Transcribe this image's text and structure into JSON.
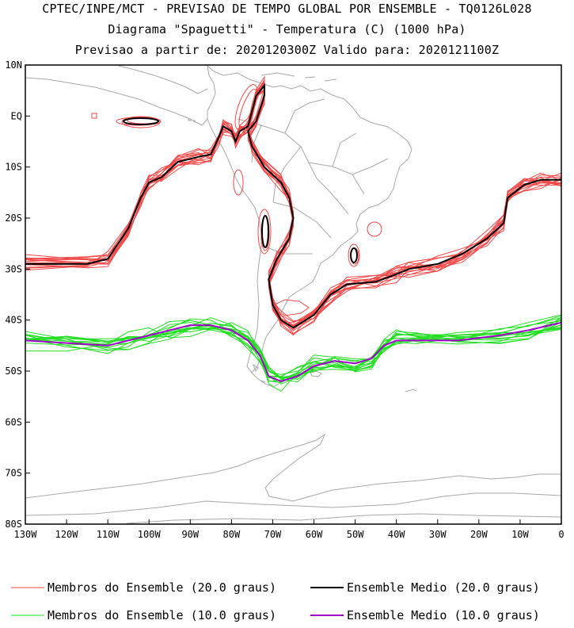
{
  "header": {
    "line1": "CPTEC/INPE/MCT - PREVISAO DE TEMPO GLOBAL POR ENSEMBLE - TQ0126L028",
    "line2": "Diagrama \"Spaguetti\" - Temperatura (C) (1000 hPa)",
    "line3": "Previsao a partir de: 2020120300Z  Valido para: 2020121100Z"
  },
  "map": {
    "lon_range": [
      -130,
      0
    ],
    "lat_range": [
      -80,
      10
    ],
    "lat_ticks": [
      {
        "value": 10,
        "label": "10N"
      },
      {
        "value": 0,
        "label": "EQ"
      },
      {
        "value": -10,
        "label": "10S"
      },
      {
        "value": -20,
        "label": "20S"
      },
      {
        "value": -30,
        "label": "30S"
      },
      {
        "value": -40,
        "label": "40S"
      },
      {
        "value": -50,
        "label": "50S"
      },
      {
        "value": -60,
        "label": "60S"
      },
      {
        "value": -70,
        "label": "70S"
      },
      {
        "value": -80,
        "label": "80S"
      }
    ],
    "lon_ticks": [
      {
        "value": -130,
        "label": "130W"
      },
      {
        "value": -120,
        "label": "120W"
      },
      {
        "value": -110,
        "label": "110W"
      },
      {
        "value": -100,
        "label": "100W"
      },
      {
        "value": -90,
        "label": "90W"
      },
      {
        "value": -80,
        "label": "80W"
      },
      {
        "value": -70,
        "label": "70W"
      },
      {
        "value": -60,
        "label": "60W"
      },
      {
        "value": -50,
        "label": "50W"
      },
      {
        "value": -40,
        "label": "40W"
      },
      {
        "value": -30,
        "label": "30W"
      },
      {
        "value": -20,
        "label": "20W"
      },
      {
        "value": -10,
        "label": "10W"
      },
      {
        "value": 0,
        "label": "0"
      }
    ],
    "colors": {
      "coastline": "#a8a8a8",
      "member_20": "#f04848",
      "mean_20": "#000000",
      "member_10": "#22dd22",
      "mean_10": "#a000c8"
    }
  },
  "legend": {
    "items": [
      {
        "label": "Membros do Ensemble (20.0 graus)",
        "color": "#f04848",
        "weight": 1
      },
      {
        "label": "Ensemble Medio (20.0 graus)",
        "color": "#000000",
        "weight": 2
      },
      {
        "label": "Membros do Ensemble (10.0 graus)",
        "color": "#22dd22",
        "weight": 1
      },
      {
        "label": "Ensemble Medio (10.0 graus)",
        "color": "#a000c8",
        "weight": 2
      }
    ]
  },
  "isotherms": {
    "mean_20": [
      [
        -130,
        -29
      ],
      [
        -115,
        -29
      ],
      [
        -110,
        -28
      ],
      [
        -105,
        -22
      ],
      [
        -102,
        -16
      ],
      [
        -100,
        -13
      ],
      [
        -97,
        -12
      ],
      [
        -93,
        -9
      ],
      [
        -88,
        -8
      ],
      [
        -85,
        -7.5
      ],
      [
        -83,
        -4
      ],
      [
        -82,
        -2
      ],
      [
        -80,
        -3
      ],
      [
        -79,
        -5
      ],
      [
        -78,
        -3
      ],
      [
        -76,
        -2
      ],
      [
        -75,
        1
      ],
      [
        -74,
        4
      ],
      [
        -72,
        6
      ],
      [
        -72,
        4
      ],
      [
        -74,
        -1
      ],
      [
        -76,
        -3
      ],
      [
        -75,
        -6
      ],
      [
        -72,
        -10
      ],
      [
        -68,
        -13
      ],
      [
        -66,
        -16
      ],
      [
        -65,
        -20
      ],
      [
        -66,
        -24
      ],
      [
        -69,
        -28
      ],
      [
        -71,
        -32
      ],
      [
        -70,
        -37
      ],
      [
        -68,
        -40
      ],
      [
        -65,
        -41.5
      ],
      [
        -60,
        -39
      ],
      [
        -56,
        -35
      ],
      [
        -52,
        -33
      ],
      [
        -45,
        -32.5
      ],
      [
        -40,
        -31
      ],
      [
        -37,
        -30
      ],
      [
        -30,
        -29
      ],
      [
        -24,
        -27
      ],
      [
        -18,
        -24
      ],
      [
        -14,
        -21
      ],
      [
        -13,
        -16
      ],
      [
        -9,
        -13.5
      ],
      [
        -5,
        -12.5
      ],
      [
        0,
        -12.5
      ]
    ],
    "mean_10": [
      [
        -130,
        -44
      ],
      [
        -120,
        -44.5
      ],
      [
        -110,
        -45
      ],
      [
        -105,
        -44
      ],
      [
        -100,
        -43
      ],
      [
        -95,
        -42
      ],
      [
        -90,
        -41
      ],
      [
        -85,
        -41
      ],
      [
        -80,
        -42
      ],
      [
        -76,
        -44
      ],
      [
        -73,
        -47
      ],
      [
        -71,
        -51
      ],
      [
        -68,
        -52
      ],
      [
        -64,
        -51
      ],
      [
        -60,
        -49
      ],
      [
        -55,
        -48
      ],
      [
        -50,
        -48.5
      ],
      [
        -46,
        -47.5
      ],
      [
        -43,
        -45
      ],
      [
        -40,
        -44
      ],
      [
        -35,
        -44
      ],
      [
        -25,
        -44
      ],
      [
        -15,
        -43
      ],
      [
        -8,
        -42
      ],
      [
        0,
        -40.5
      ]
    ]
  }
}
